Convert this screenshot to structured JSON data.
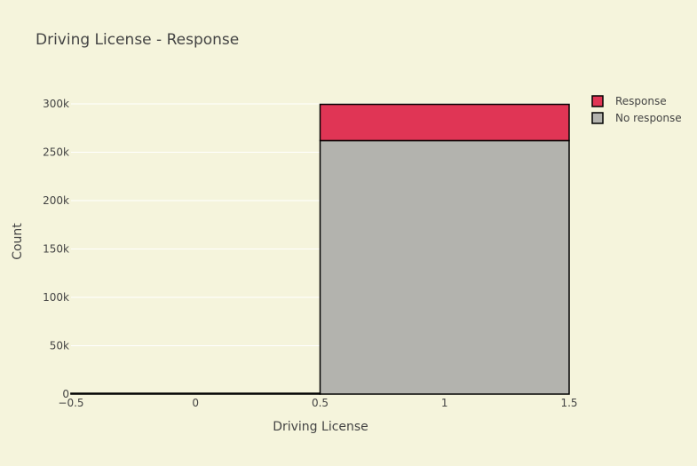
{
  "chart_data": {
    "type": "bar",
    "title": "Driving License - Response",
    "xlabel": "Driving License",
    "ylabel": "Count",
    "xlim": [
      -0.5,
      1.5
    ],
    "ylim": [
      0,
      300000
    ],
    "x_ticks": [
      -0.5,
      0,
      0.5,
      1,
      1.5
    ],
    "x_tick_labels": [
      "−0.5",
      "0",
      "0.5",
      "1",
      "1.5"
    ],
    "y_ticks": [
      0,
      50000,
      100000,
      150000,
      200000,
      250000,
      300000
    ],
    "y_tick_labels": [
      "0",
      "50k",
      "100k",
      "150k",
      "200k",
      "250k",
      "300k"
    ],
    "grid": true,
    "barmode": "stack",
    "legend_position": "top-right",
    "categories": [
      "0",
      "1"
    ],
    "bins": [
      [
        -0.5,
        0.5
      ],
      [
        0.5,
        1.5
      ]
    ],
    "series": [
      {
        "name": "No response",
        "color": "#b3b3ae",
        "values": [
          771,
          262000
        ]
      },
      {
        "name": "Response",
        "color": "#e03555",
        "values": [
          41,
          37500
        ]
      }
    ],
    "legend": [
      "Response",
      "No response"
    ]
  },
  "colors": {
    "background": "#f5f4dc",
    "grid": "#ffffff",
    "bar_outline": "#000000",
    "text": "#444444"
  }
}
